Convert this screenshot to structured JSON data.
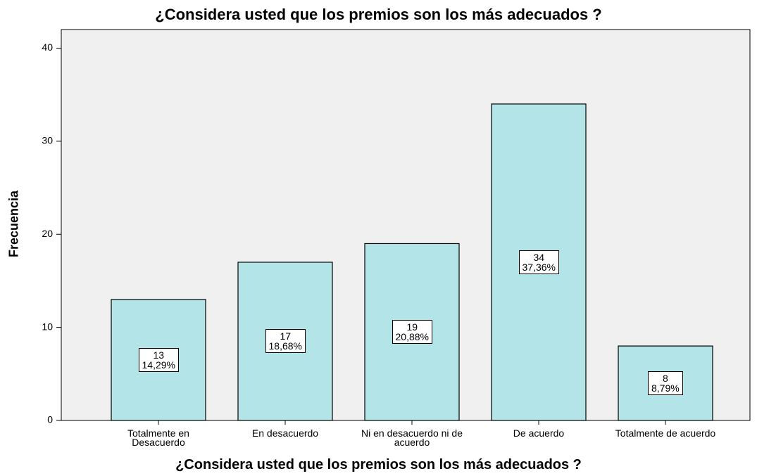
{
  "chart_data": {
    "type": "bar",
    "title": "¿Considera usted que los premios son los más adecuados ?",
    "x_label": "¿Considera usted que los premios son los más adecuados ?",
    "y_label": "Frecuencia",
    "categories": [
      "Totalmente en Desacuerdo",
      "En desacuerdo",
      "Ni en desacuerdo ni de acuerdo",
      "De acuerdo",
      "Totalmente de acuerdo"
    ],
    "values": [
      13,
      17,
      19,
      34,
      8
    ],
    "percentages": [
      14.29,
      18.68,
      20.88,
      37.36,
      8.79
    ],
    "percentage_labels": [
      "14,29%",
      "18,68%",
      "20,88%",
      "37,36%",
      "8,79%"
    ],
    "color": "#b3e5e8",
    "ylim": [
      0,
      42
    ],
    "yticks": [
      0,
      10,
      20,
      30,
      40
    ],
    "grid": false
  }
}
